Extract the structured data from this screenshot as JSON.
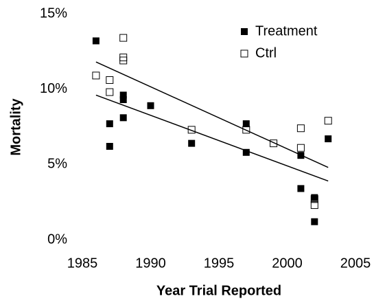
{
  "chart_data": {
    "type": "scatter",
    "xlabel": "Year Trial Reported",
    "ylabel": "Mortality",
    "xlim": [
      1985,
      2005
    ],
    "xticks": [
      1985,
      1990,
      1995,
      2000,
      2005
    ],
    "ylim": [
      0,
      15
    ],
    "yticks": [
      {
        "value": 0,
        "label": "0%"
      },
      {
        "value": 5,
        "label": "5%"
      },
      {
        "value": 10,
        "label": "10%"
      },
      {
        "value": 15,
        "label": "15%"
      }
    ],
    "legend": "top-right",
    "trend_x": [
      1986,
      2003
    ],
    "series": [
      {
        "name": "Treatment",
        "color": "#000000",
        "marker": "filled",
        "x": [
          1986,
          1987,
          1987,
          1988,
          1988,
          1988,
          1990,
          1993,
          1997,
          1997,
          2001,
          2001,
          2002,
          2002,
          2003
        ],
        "values": [
          13.2,
          7.7,
          6.2,
          9.6,
          9.3,
          8.1,
          8.9,
          6.4,
          7.7,
          5.8,
          5.6,
          3.4,
          2.8,
          1.2,
          6.7
        ],
        "trend": [
          9.6,
          3.9
        ]
      },
      {
        "name": "Ctrl",
        "color": "#000000",
        "marker": "open",
        "x": [
          1986,
          1987,
          1987,
          1988,
          1988,
          1988,
          1993,
          1997,
          1999,
          2001,
          2001,
          2002,
          2002,
          2003
        ],
        "values": [
          10.9,
          10.6,
          9.8,
          13.4,
          12.1,
          11.9,
          7.3,
          7.3,
          6.4,
          7.4,
          6.1,
          2.7,
          2.3,
          7.9
        ],
        "trend": [
          11.8,
          4.8
        ]
      }
    ]
  }
}
